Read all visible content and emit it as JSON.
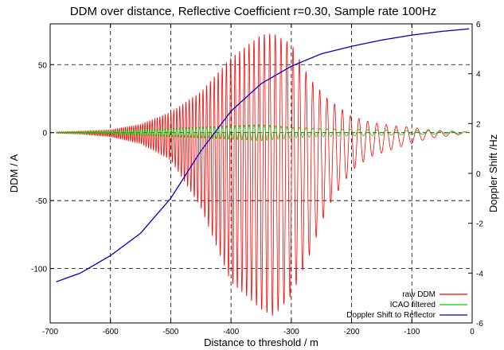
{
  "chart_data": {
    "type": "line",
    "title": "DDM over distance, Reflective Coefficient r=0.30, Sample rate 100Hz",
    "xlabel": "Distance to threshold / m",
    "ylabel": "DDM /   A",
    "y2label": "Doppler Shift /Hz",
    "xlim": [
      -700,
      0
    ],
    "ylim": [
      -140,
      80
    ],
    "y2lim": [
      -6,
      6
    ],
    "x_ticks": [
      -700,
      -600,
      -500,
      -400,
      -300,
      -200,
      -100,
      0
    ],
    "y_ticks": [
      -100,
      -50,
      0,
      50
    ],
    "y2_ticks": [
      -6,
      -4,
      -2,
      0,
      2,
      4,
      6
    ],
    "grid": "dashed at major ticks",
    "legend_position": "bottom-right",
    "series": [
      {
        "name": "raw DDM",
        "color": "#ff0000",
        "axis": "left",
        "kind": "oscillation",
        "envelope": {
          "x": [
            -690,
            -650,
            -600,
            -550,
            -500,
            -450,
            -400,
            -350,
            -330,
            -300,
            -270,
            -240,
            -200,
            -170,
            -130,
            -100,
            -70,
            -30,
            -5
          ],
          "upper": [
            0.5,
            1,
            2,
            6,
            15,
            30,
            55,
            72,
            73,
            65,
            40,
            25,
            12,
            8,
            5,
            4,
            2,
            1,
            0.5
          ],
          "lower": [
            -0.5,
            -1,
            -3,
            -8,
            -20,
            -55,
            -110,
            -130,
            -135,
            -120,
            -90,
            -55,
            -28,
            -18,
            -12,
            -8,
            -4,
            -2,
            -0.5
          ]
        }
      },
      {
        "name": "ICAO filtered",
        "color": "#00cc00",
        "axis": "left",
        "kind": "oscillation",
        "envelope": {
          "x": [
            -690,
            -650,
            -600,
            -550,
            -500,
            -450,
            -400,
            -350,
            -300,
            -250,
            -200,
            -150,
            -100,
            -50,
            -5
          ],
          "upper": [
            0.2,
            0.5,
            1,
            2,
            3,
            4,
            5,
            6,
            4,
            3,
            2.5,
            2,
            1.5,
            1,
            0.5
          ],
          "lower": [
            -0.2,
            -0.5,
            -1,
            -2,
            -3,
            -4,
            -5,
            -6,
            -4,
            -3,
            -2.5,
            -2,
            -1.5,
            -1,
            -0.5
          ]
        }
      },
      {
        "name": "Doppler Shift to Reflector",
        "color": "#0000cc",
        "axis": "right",
        "kind": "curve",
        "x": [
          -690,
          -650,
          -600,
          -550,
          -500,
          -450,
          -400,
          -350,
          -300,
          -250,
          -200,
          -150,
          -100,
          -50,
          -5
        ],
        "y": [
          -4.35,
          -4.0,
          -3.3,
          -2.4,
          -1.0,
          0.9,
          2.5,
          3.6,
          4.3,
          4.8,
          5.1,
          5.35,
          5.55,
          5.7,
          5.8
        ]
      }
    ]
  }
}
